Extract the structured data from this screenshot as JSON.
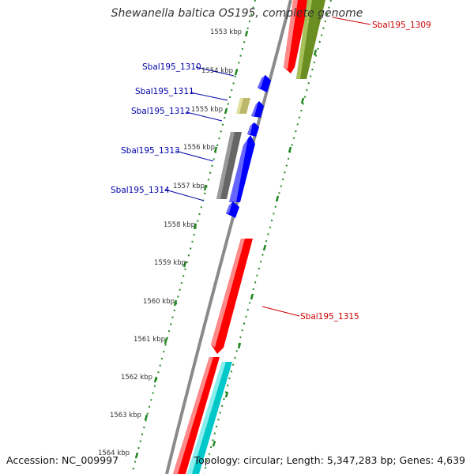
{
  "title": "Shewanella baltica OS195, complete genome",
  "footer": {
    "accession": "Accession: NC_009997",
    "topology": "Topology: circular; Length: 5,347,283 bp; Genes: 4,639"
  },
  "colors": {
    "backbone": "#8a8a8a",
    "tick": "#228822",
    "label_forward": "#0000aa",
    "label_reverse": "#cc0000",
    "gene_red": "#ff0000",
    "gene_blue": "#0000ff",
    "gene_olive": "#6b8e23",
    "gene_khaki": "#bdb76b",
    "gene_gray": "#666666",
    "gene_cyan": "#00c8c8"
  },
  "kbp_labels": [
    "1553 kbp",
    "1554 kbp",
    "1555 kbp",
    "1556 kbp",
    "1557 kbp",
    "1558 kbp",
    "1559 kbp",
    "1560 kbp",
    "1561 kbp",
    "1562 kbp",
    "1563 kbp",
    "1564 kbp"
  ],
  "gene_labels": {
    "g1309": "Sbal195_1309",
    "g1310": "Sbal195_1310",
    "g1311": "Sbal195_1311",
    "g1312": "Sbal195_1312",
    "g1313": "Sbal195_1313",
    "g1314": "Sbal195_1314",
    "g1315": "Sbal195_1315"
  }
}
